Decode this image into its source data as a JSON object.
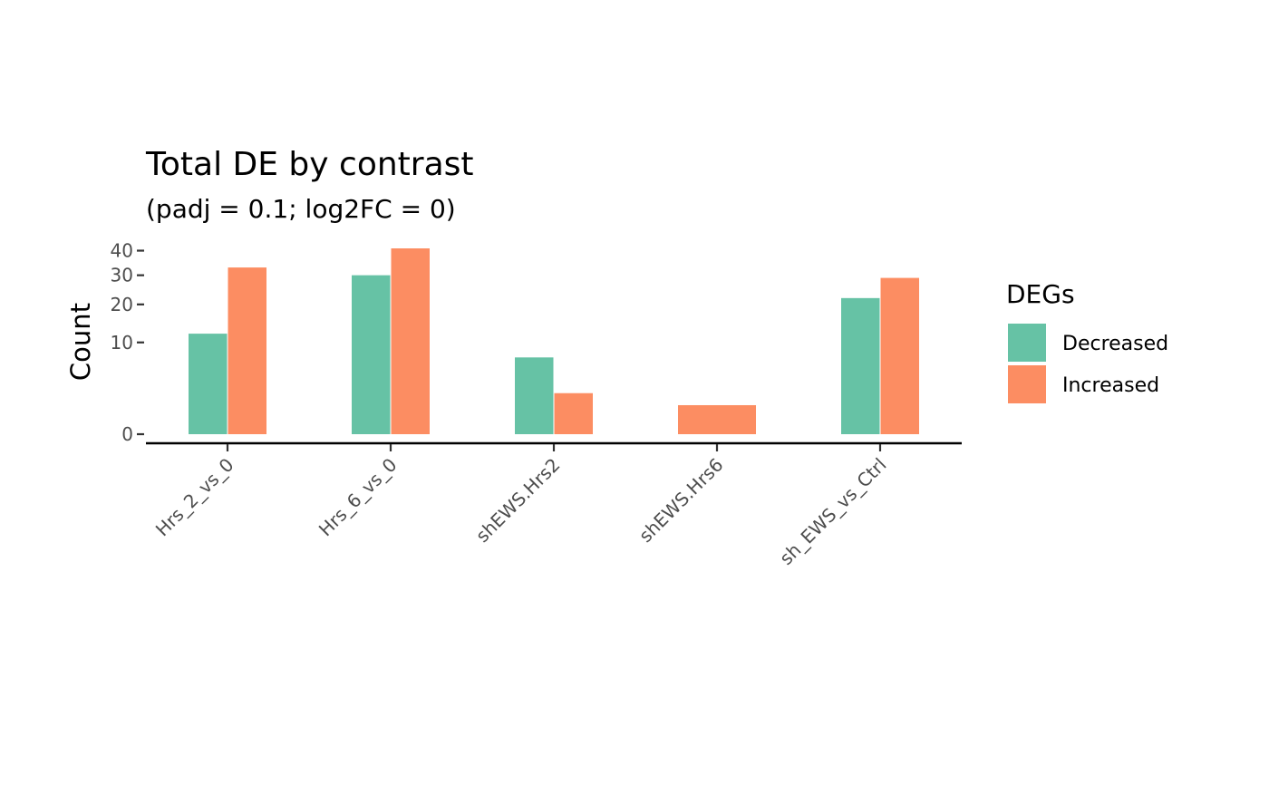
{
  "chart_data": {
    "type": "bar",
    "title": "Total DE by contrast",
    "subtitle": "(padj = 0.1; log2FC = 0)",
    "xlabel": "",
    "ylabel": "Count",
    "y_scale": "sqrt",
    "ylim": [
      0,
      41
    ],
    "y_ticks": [
      0,
      10,
      20,
      30,
      40
    ],
    "categories": [
      "Hrs_2_vs_0",
      "Hrs_6_vs_0",
      "shEWS.Hrs2",
      "shEWS.Hrs6",
      "sh_EWS_vs_Ctrl"
    ],
    "series": [
      {
        "name": "Decreased",
        "color": "#66C2A5",
        "values": [
          12,
          30,
          7,
          null,
          22
        ]
      },
      {
        "name": "Increased",
        "color": "#FC8D62",
        "values": [
          33,
          41,
          2,
          1,
          29
        ]
      }
    ],
    "legend": {
      "title": "DEGs",
      "position": "right"
    },
    "grid": false
  }
}
